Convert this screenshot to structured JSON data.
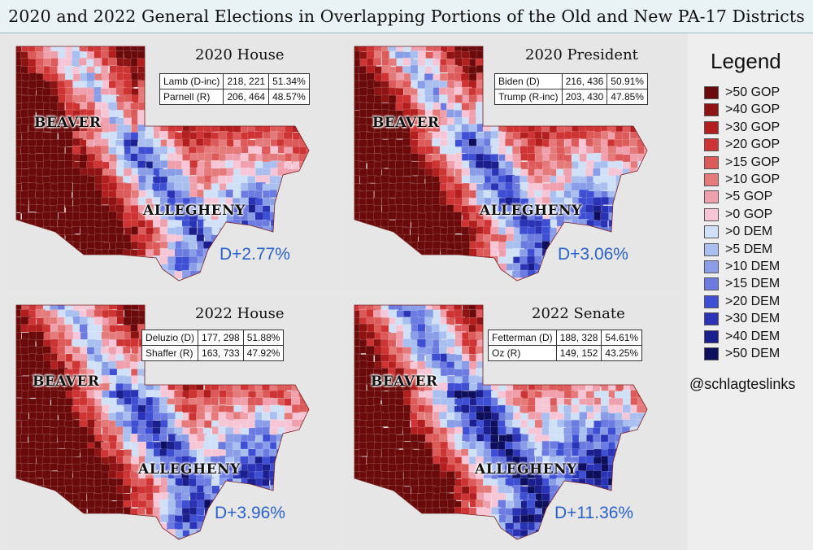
{
  "title": "2020 and 2022 General Elections in Overlapping Portions of the Old and New PA-17 Districts",
  "panels": [
    {
      "title": "2020 House",
      "rows": [
        {
          "candidate": "Lamb (D-inc)",
          "votes": "218, 221",
          "pct": "51.34%"
        },
        {
          "candidate": "Parnell (R)",
          "votes": "206, 464",
          "pct": "48.57%"
        }
      ],
      "margin": "D+2.77%",
      "labels": {
        "beaver": "BEAVER",
        "allegheny": "ALLEGHENY"
      },
      "shade_bias": 0.0
    },
    {
      "title": "2020 President",
      "rows": [
        {
          "candidate": "Biden (D)",
          "votes": "216, 436",
          "pct": "50.91%"
        },
        {
          "candidate": "Trump (R-inc)",
          "votes": "203, 430",
          "pct": "47.85%"
        }
      ],
      "margin": "D+3.06%",
      "labels": {
        "beaver": "BEAVER",
        "allegheny": "ALLEGHENY"
      },
      "shade_bias": 0.5
    },
    {
      "title": "2022 House",
      "rows": [
        {
          "candidate": "Deluzio (D)",
          "votes": "177, 298",
          "pct": "51.88%"
        },
        {
          "candidate": "Shaffer (R)",
          "votes": "163, 733",
          "pct": "47.92%"
        }
      ],
      "margin": "D+3.96%",
      "labels": {
        "beaver": "BEAVER",
        "allegheny": "ALLEGHENY"
      },
      "shade_bias": 1.0
    },
    {
      "title": "2022 Senate",
      "rows": [
        {
          "candidate": "Fetterman (D)",
          "votes": "188, 328",
          "pct": "54.61%"
        },
        {
          "candidate": "Oz (R)",
          "votes": "149, 152",
          "pct": "43.25%"
        }
      ],
      "margin": "D+11.36%",
      "labels": {
        "beaver": "BEAVER",
        "allegheny": "ALLEGHENY"
      },
      "shade_bias": 2.5
    }
  ],
  "legend": {
    "title": "Legend",
    "items": [
      {
        "label": ">50 GOP",
        "color": "#6b0a0a"
      },
      {
        "label": ">40 GOP",
        "color": "#8e1414"
      },
      {
        "label": ">30 GOP",
        "color": "#b31f1f"
      },
      {
        "label": ">20 GOP",
        "color": "#cf3434"
      },
      {
        "label": ">15 GOP",
        "color": "#dd5a5a"
      },
      {
        "label": ">10 GOP",
        "color": "#e57a7a"
      },
      {
        "label": ">5 GOP",
        "color": "#f0a0ac"
      },
      {
        "label": ">0 GOP",
        "color": "#f6c6d6"
      },
      {
        "label": ">0 DEM",
        "color": "#cfe0f7"
      },
      {
        "label": ">5 DEM",
        "color": "#a9bff0"
      },
      {
        "label": ">10 DEM",
        "color": "#8a9ee8"
      },
      {
        "label": ">15 DEM",
        "color": "#6c7be0"
      },
      {
        "label": ">20 DEM",
        "color": "#3f4fd4"
      },
      {
        "label": ">30 DEM",
        "color": "#2a33b5"
      },
      {
        "label": ">40 DEM",
        "color": "#1b1f8d"
      },
      {
        "label": ">50 DEM",
        "color": "#0e0f5c"
      }
    ]
  },
  "credit": "@schlagteslinks"
}
